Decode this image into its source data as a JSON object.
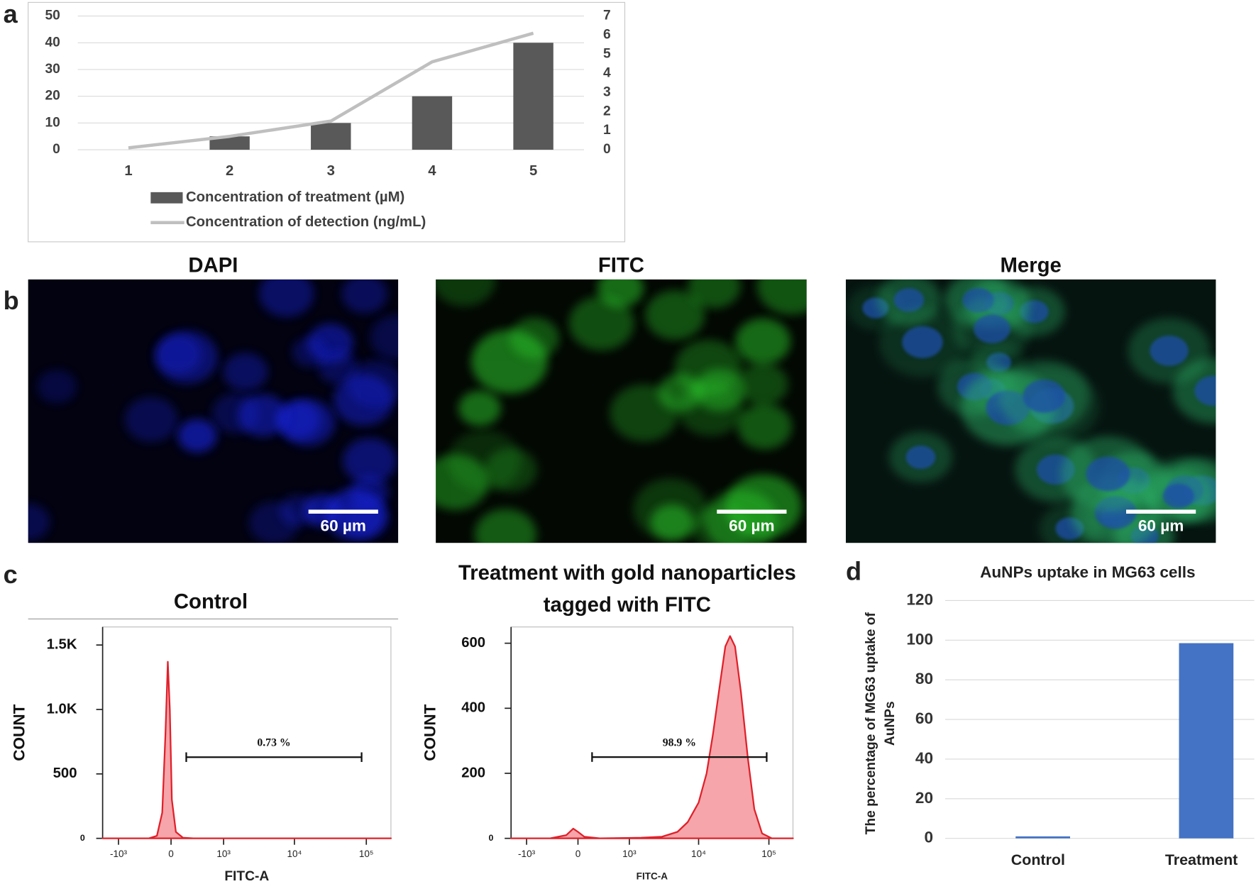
{
  "panel_labels": [
    "a",
    "b",
    "c",
    "d"
  ],
  "images": [
    {
      "title": "DAPI",
      "scale_bar": "60 µm"
    },
    {
      "title": "FITC",
      "scale_bar": "60 µm"
    },
    {
      "title": "Merge",
      "scale_bar": "60 µm"
    }
  ],
  "chart_data": [
    {
      "type": "bar",
      "categories": [
        "1",
        "2",
        "3",
        "4",
        "5"
      ],
      "series": [
        {
          "name": "Concentration of treatment (µM)",
          "type": "bar",
          "color": "#595959",
          "values": [
            0,
            5,
            10,
            20,
            40
          ]
        },
        {
          "name": "Concentration of detection (ng/mL)",
          "type": "line",
          "color": "#bfbfbf",
          "axis": "y2",
          "values": [
            0.1,
            0.7,
            1.5,
            4.6,
            6.1
          ]
        }
      ],
      "ylim": [
        0,
        50
      ],
      "yticks": [
        0,
        10,
        20,
        30,
        40,
        50
      ],
      "y2lim": [
        0,
        7
      ],
      "y2ticks": [
        0,
        1,
        2,
        3,
        4,
        5,
        6,
        7
      ],
      "grid": true
    },
    {
      "type": "area",
      "title": [
        "Control"
      ],
      "xlabel": "FITC-A",
      "ylabel": "COUNT",
      "xscale": "biexponential",
      "x": [
        -1700,
        -300,
        -180,
        -110,
        -70,
        -40,
        -15,
        10,
        60,
        150,
        300,
        220000
      ],
      "values": [
        0,
        0,
        20,
        200,
        800,
        1370,
        1000,
        300,
        50,
        5,
        0,
        0
      ],
      "color": "#e0202a",
      "xlim": [
        -1700,
        220000
      ],
      "xticks": [
        {
          "value": -1000,
          "label": "-10³"
        },
        0,
        {
          "value": 1000,
          "label": "10³"
        },
        {
          "value": 10000,
          "label": "10⁴"
        },
        {
          "value": 100000,
          "label": "10⁵"
        }
      ],
      "ylim": [
        0,
        1640
      ],
      "yticks": [
        0,
        500,
        {
          "value": 1000,
          "label": "1.0K"
        },
        {
          "value": 1500,
          "label": "1.5K"
        }
      ],
      "gate": {
        "label": "0.73 %",
        "x": [
          195,
          86000
        ],
        "y": 630
      }
    },
    {
      "type": "area",
      "title": [
        "Treatment with gold nanoparticles",
        "tagged with FITC"
      ],
      "xlabel": "FITC-A",
      "ylabel": "COUNT",
      "xscale": "biexponential",
      "x": [
        -1700,
        -400,
        -150,
        -60,
        0,
        80,
        300,
        1500,
        3000,
        5000,
        7000,
        10000,
        13000,
        16000,
        20000,
        24000,
        28000,
        33000,
        40000,
        50000,
        62000,
        80000,
        110000,
        220000
      ],
      "values": [
        0,
        0,
        10,
        30,
        20,
        5,
        0,
        2,
        5,
        20,
        50,
        110,
        200,
        320,
        470,
        590,
        622,
        590,
        450,
        250,
        90,
        15,
        0,
        0
      ],
      "color": "#e0202a",
      "xlim": [
        -1700,
        220000
      ],
      "xticks": [
        {
          "value": -1000,
          "label": "-10³"
        },
        0,
        {
          "value": 1000,
          "label": "10³"
        },
        {
          "value": 10000,
          "label": "10⁴"
        },
        {
          "value": 100000,
          "label": "10⁵"
        }
      ],
      "ylim": [
        0,
        650
      ],
      "yticks": [
        0,
        200,
        400,
        600
      ],
      "gate": {
        "label": "98.9 %",
        "x": [
          184,
          93000
        ],
        "y": 250
      }
    },
    {
      "type": "bar",
      "title": "AuNPs uptake in MG63 cells",
      "ylabel": [
        "The percentage of MG63 uptake of",
        "AuNPs"
      ],
      "categories": [
        "Control",
        "Treatment"
      ],
      "values": [
        1,
        98.5
      ],
      "color": "#4472c4",
      "ylim": [
        0,
        120
      ],
      "yticks": [
        0,
        20,
        40,
        60,
        80,
        100,
        120
      ],
      "grid": true
    }
  ]
}
